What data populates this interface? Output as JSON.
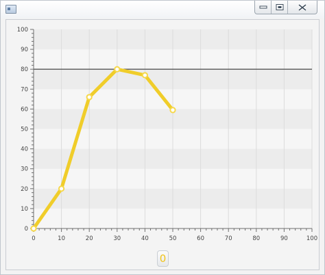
{
  "window": {
    "title": "",
    "icon": "window-icon",
    "controls": [
      "minimize-icon",
      "restore-icon",
      "close-icon"
    ]
  },
  "counter": {
    "value": "0",
    "color": "#f0c419"
  },
  "colors": {
    "series": "#f0cd2a",
    "series_stroke": "#f6d84a",
    "point_fill": "#ffffff",
    "threshold_line": "#555555",
    "band_light": "#f6f6f6",
    "band_dark": "#ececec",
    "grid": "#dcdcdc"
  },
  "chart_data": {
    "type": "line",
    "x": [
      0,
      10,
      20,
      30,
      40,
      50
    ],
    "series": [
      {
        "values": [
          0,
          20,
          66,
          80,
          77,
          59.5
        ]
      }
    ],
    "xlim": [
      0,
      100
    ],
    "ylim": [
      0,
      100
    ],
    "x_ticks": [
      0,
      10,
      20,
      30,
      40,
      50,
      60,
      70,
      80,
      90,
      100
    ],
    "y_ticks": [
      0,
      10,
      20,
      30,
      40,
      50,
      60,
      70,
      80,
      90,
      100
    ],
    "horizontal_line": 80,
    "grid": true,
    "alternating_bands": true,
    "title": "",
    "xlabel": "",
    "ylabel": "",
    "legend": "none"
  }
}
